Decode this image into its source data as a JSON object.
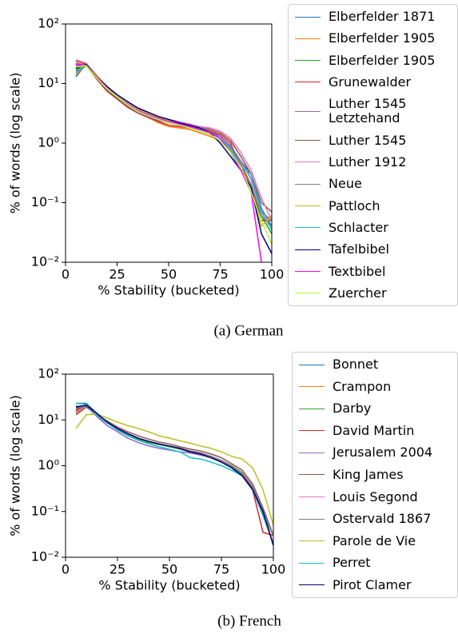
{
  "chart_data": [
    {
      "type": "line",
      "caption": "(a) German",
      "xlabel": "% Stability (bucketed)",
      "ylabel": "% of words (log scale)",
      "yscale": "log",
      "xlim": [
        0,
        100
      ],
      "xticks": [
        0,
        25,
        50,
        75,
        100
      ],
      "ylim": [
        0.01,
        100
      ],
      "yticks": [
        {
          "value": 0.01,
          "label": "10⁻²"
        },
        {
          "value": 0.1,
          "label": "10⁻¹"
        },
        {
          "value": 1,
          "label": "10⁰"
        },
        {
          "value": 10,
          "label": "10¹"
        },
        {
          "value": 100,
          "label": "10²"
        }
      ],
      "x": [
        5,
        10,
        15,
        20,
        25,
        30,
        35,
        40,
        45,
        50,
        55,
        60,
        65,
        70,
        75,
        80,
        85,
        90,
        95,
        100
      ],
      "series": [
        {
          "name": "Elberfelder 1871",
          "color": "#1f77b4",
          "values": [
            13,
            21,
            13,
            8.8,
            6.2,
            4.6,
            3.6,
            3.1,
            2.7,
            2.4,
            2.2,
            2.0,
            1.8,
            1.6,
            1.3,
            0.9,
            0.5,
            0.3,
            0.08,
            0.04
          ]
        },
        {
          "name": "Elberfelder 1905",
          "color": "#ff7f0e",
          "values": [
            14,
            20,
            12,
            8,
            5.5,
            4.1,
            3.2,
            2.7,
            2.2,
            1.9,
            1.8,
            1.7,
            1.5,
            1.3,
            1.1,
            0.75,
            0.4,
            0.15,
            0.05,
            0.06
          ]
        },
        {
          "name": "Elberfelder 1905",
          "color": "#2ca02c",
          "values": [
            17,
            21,
            13,
            8.5,
            6,
            4.5,
            3.5,
            3,
            2.6,
            2.3,
            2.1,
            1.9,
            1.7,
            1.5,
            1.2,
            0.8,
            0.45,
            0.2,
            0.06,
            0.03
          ]
        },
        {
          "name": "Grunewalder",
          "color": "#d62728",
          "values": [
            24,
            21,
            12,
            7.5,
            5.5,
            4,
            3.2,
            2.7,
            2.3,
            2.0,
            1.9,
            1.8,
            1.7,
            1.6,
            1.4,
            1.0,
            0.4,
            0.2,
            0.05,
            0.05
          ]
        },
        {
          "name": "Luther 1545 Letztehand",
          "color": "#9467bd",
          "values": [
            20,
            20,
            12.5,
            8,
            5.8,
            4.2,
            3.3,
            2.8,
            2.4,
            2.2,
            2.0,
            1.9,
            1.7,
            1.5,
            1.3,
            0.9,
            0.5,
            0.25,
            0.07,
            0.05
          ]
        },
        {
          "name": "Luther 1545",
          "color": "#8c564b",
          "values": [
            22,
            20,
            13,
            8.7,
            6.3,
            4.7,
            3.7,
            3.1,
            2.7,
            2.4,
            2.2,
            2.0,
            1.9,
            1.7,
            1.5,
            1.1,
            0.6,
            0.3,
            0.1,
            0.07
          ]
        },
        {
          "name": "Luther 1912",
          "color": "#e377c2",
          "values": [
            25,
            22,
            14,
            9,
            6.5,
            4.8,
            3.8,
            3.2,
            2.8,
            2.5,
            2.3,
            2.1,
            1.9,
            1.8,
            1.6,
            1.2,
            0.7,
            0.35,
            0.12,
            0.05
          ]
        },
        {
          "name": "Neue",
          "color": "#7f7f7f",
          "values": [
            16,
            20,
            13,
            8.5,
            6.1,
            4.5,
            3.5,
            3,
            2.6,
            2.3,
            2.1,
            1.9,
            1.7,
            1.5,
            1.2,
            0.85,
            0.45,
            0.2,
            0.06,
            0.04
          ]
        },
        {
          "name": "Pattloch",
          "color": "#bcbd22",
          "values": [
            18,
            21,
            13.5,
            8.8,
            6.2,
            4.6,
            3.6,
            3.1,
            2.7,
            2.4,
            2.1,
            1.9,
            1.6,
            1.4,
            1.1,
            0.7,
            0.4,
            0.15,
            0.04,
            0.06
          ]
        },
        {
          "name": "Schlacter",
          "color": "#17becf",
          "values": [
            15,
            20,
            12.5,
            8.2,
            5.9,
            4.4,
            3.4,
            2.9,
            2.5,
            2.3,
            2.1,
            1.9,
            1.7,
            1.5,
            1.2,
            0.8,
            0.4,
            0.3,
            0.07,
            0.035
          ]
        },
        {
          "name": "Tafelbibel",
          "color": "#000080",
          "values": [
            18,
            21,
            13,
            9,
            6.5,
            5,
            3.9,
            3.3,
            2.8,
            2.5,
            2.2,
            2.0,
            1.8,
            1.5,
            1.0,
            0.6,
            0.35,
            0.18,
            0.03,
            0.014
          ]
        },
        {
          "name": "Textbibel",
          "color": "#ff00ff",
          "values": [
            21,
            20,
            13,
            8.5,
            6,
            4.5,
            3.5,
            3,
            2.6,
            2.3,
            2.1,
            1.9,
            1.7,
            1.5,
            1.2,
            0.7,
            0.35,
            0.15,
            0.01,
            null
          ]
        },
        {
          "name": "Zuercher",
          "color": "#adff2f",
          "values": [
            19,
            20,
            12.5,
            8.3,
            6,
            4.4,
            3.4,
            2.9,
            2.5,
            2.2,
            2.0,
            1.8,
            1.6,
            1.4,
            1.1,
            0.7,
            0.4,
            0.15,
            0.05,
            0.02
          ]
        }
      ]
    },
    {
      "type": "line",
      "caption": "(b) French",
      "xlabel": "% Stability (bucketed)",
      "ylabel": "% of words (log scale)",
      "yscale": "log",
      "xlim": [
        0,
        100
      ],
      "xticks": [
        0,
        25,
        50,
        75,
        100
      ],
      "ylim": [
        0.01,
        100
      ],
      "yticks": [
        {
          "value": 0.01,
          "label": "10⁻²"
        },
        {
          "value": 0.1,
          "label": "10⁻¹"
        },
        {
          "value": 1,
          "label": "10⁰"
        },
        {
          "value": 10,
          "label": "10¹"
        },
        {
          "value": 100,
          "label": "10²"
        }
      ],
      "x": [
        5,
        10,
        15,
        20,
        25,
        30,
        35,
        40,
        45,
        50,
        55,
        60,
        65,
        70,
        75,
        80,
        85,
        90,
        95,
        100
      ],
      "series": [
        {
          "name": "Bonnet",
          "color": "#1f77b4",
          "values": [
            23,
            23,
            14,
            9,
            6.5,
            5,
            4,
            3.3,
            2.9,
            2.6,
            2.3,
            2.0,
            1.8,
            1.5,
            1.2,
            0.9,
            0.6,
            0.3,
            0.1,
            0.03
          ]
        },
        {
          "name": "Crampon",
          "color": "#ff7f0e",
          "values": [
            14,
            20,
            13,
            9,
            6.5,
            5,
            4,
            3.3,
            3,
            2.7,
            2.4,
            2.1,
            1.9,
            1.6,
            1.3,
            1,
            0.7,
            0.35,
            0.1,
            0.02
          ]
        },
        {
          "name": "Darby",
          "color": "#2ca02c",
          "values": [
            17,
            20,
            12.5,
            8.5,
            6.2,
            4.8,
            3.8,
            3.2,
            2.9,
            2.6,
            2.3,
            2.0,
            1.8,
            1.5,
            1.2,
            0.95,
            0.65,
            0.32,
            0.09,
            0.03
          ]
        },
        {
          "name": "David Martin",
          "color": "#d62728",
          "values": [
            16,
            21,
            13,
            9,
            6.5,
            5,
            4,
            3.4,
            3,
            2.7,
            2.4,
            2.1,
            1.9,
            1.6,
            1.3,
            1,
            0.7,
            0.3,
            0.035,
            0.03
          ]
        },
        {
          "name": "Jerusalem 2004",
          "color": "#9467bd",
          "values": [
            20,
            20,
            12,
            7.5,
            5.5,
            4,
            3.2,
            2.7,
            2.4,
            2.2,
            2.0,
            1.9,
            1.7,
            1.5,
            1.2,
            0.9,
            0.6,
            0.3,
            0.1,
            0.03
          ]
        },
        {
          "name": "King James",
          "color": "#8c564b",
          "values": [
            13,
            19,
            13,
            9.5,
            7,
            5.5,
            4.5,
            3.8,
            3.3,
            3,
            2.6,
            2.3,
            2.1,
            1.8,
            1.5,
            1.1,
            0.8,
            0.4,
            0.12,
            0.03
          ]
        },
        {
          "name": "Louis Segond",
          "color": "#e377c2",
          "values": [
            15,
            20,
            13,
            9,
            6.5,
            5,
            4,
            3.4,
            3,
            2.7,
            2.4,
            2.1,
            1.9,
            1.6,
            1.3,
            1,
            0.7,
            0.35,
            0.1,
            0.03
          ]
        },
        {
          "name": "Ostervald 1867",
          "color": "#7f7f7f",
          "values": [
            18,
            20,
            13,
            9,
            6.5,
            5,
            4,
            3.4,
            3,
            2.7,
            2.4,
            2.1,
            1.9,
            1.6,
            1.3,
            1,
            0.7,
            0.35,
            0.1,
            0.03
          ]
        },
        {
          "name": "Parole de Vie",
          "color": "#bcbd22",
          "values": [
            6.5,
            13,
            13.5,
            11,
            9,
            7.5,
            6.5,
            5.5,
            4.5,
            4,
            3.5,
            3.1,
            2.7,
            2.4,
            2,
            1.6,
            1.4,
            0.9,
            0.3,
            0.05
          ]
        },
        {
          "name": "Perret",
          "color": "#17becf",
          "values": [
            23,
            22,
            13,
            8.5,
            6,
            4.5,
            3.6,
            3,
            2.6,
            2.3,
            2.0,
            1.5,
            1.4,
            1.2,
            1.0,
            0.8,
            0.6,
            0.3,
            0.08,
            0.02
          ]
        },
        {
          "name": "Pirot Clamer",
          "color": "#000080",
          "values": [
            19,
            21,
            14,
            9,
            6.5,
            5,
            4,
            3.4,
            3,
            2.7,
            2.4,
            2.0,
            1.8,
            1.5,
            1.2,
            0.9,
            0.6,
            0.3,
            0.1,
            0.018
          ]
        }
      ]
    }
  ]
}
